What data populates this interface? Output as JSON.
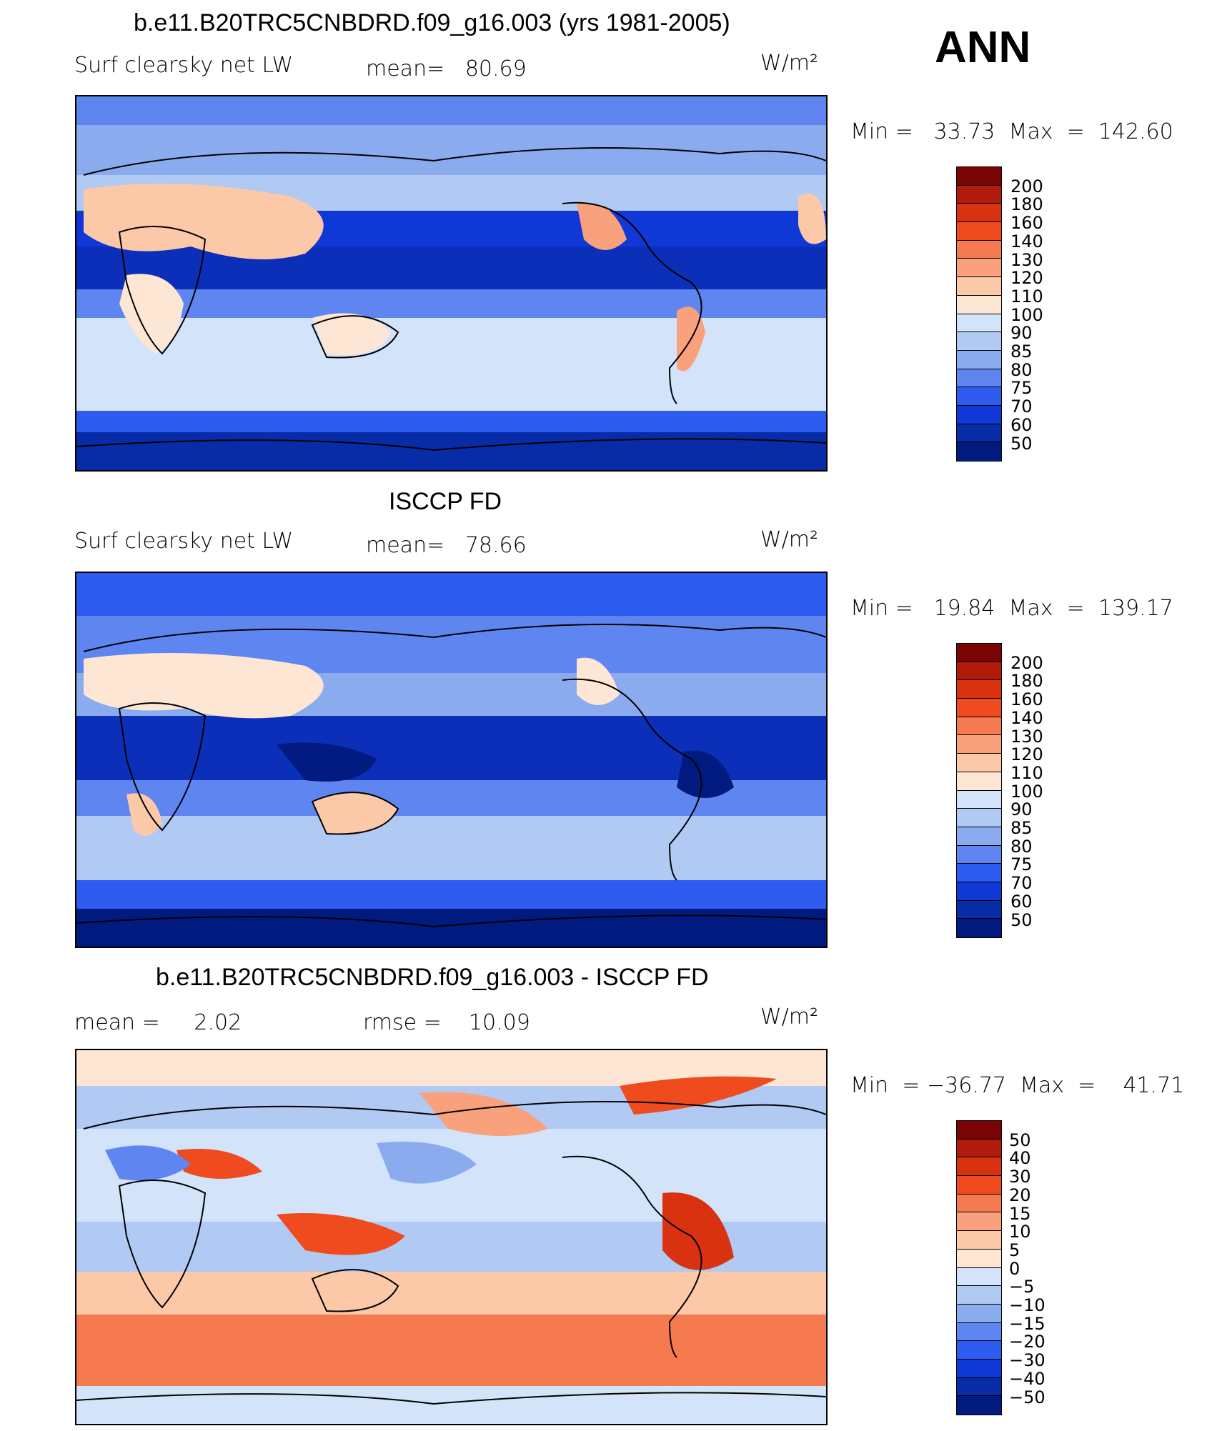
{
  "corner_label": "ANN",
  "panels": [
    {
      "title": "b.e11.B20TRC5CNBDRD.f09_g16.003 (yrs 1981-2005)",
      "variable": "Surf clearsky net LW",
      "stat_text": "mean=   80.69",
      "units": "W/m²",
      "minmax": "Min =   33.73  Max  =  142.60",
      "levels": [
        "200",
        "180",
        "160",
        "140",
        "130",
        "120",
        "110",
        "100",
        "90",
        "85",
        "80",
        "75",
        "70",
        "60",
        "50"
      ]
    },
    {
      "title": "ISCCP FD",
      "variable": "Surf clearsky net LW",
      "stat_text": "mean=   78.66",
      "units": "W/m²",
      "minmax": "Min =   19.84  Max  =  139.17",
      "levels": [
        "200",
        "180",
        "160",
        "140",
        "130",
        "120",
        "110",
        "100",
        "90",
        "85",
        "80",
        "75",
        "70",
        "60",
        "50"
      ]
    },
    {
      "title": "b.e11.B20TRC5CNBDRD.f09_g16.003 - ISCCP FD",
      "variable": "mean =     2.02",
      "stat_text": "rmse =    10.09",
      "units": "W/m²",
      "minmax": "Min  = −36.77  Max  =    41.71",
      "levels": [
        "50",
        "40",
        "30",
        "20",
        "15",
        "10",
        "5",
        "0",
        "−5",
        "−10",
        "−15",
        "−20",
        "−30",
        "−40",
        "−50"
      ]
    }
  ],
  "colorbar_colors": [
    "#7a0403",
    "#b01b0c",
    "#d83211",
    "#f04b1e",
    "#f57a4f",
    "#f8a17c",
    "#fbc8a8",
    "#fde6d4",
    "#d3e3fa",
    "#b0caf4",
    "#8aacee",
    "#5f86f0",
    "#2e5cf0",
    "#1038d6",
    "#082ca8",
    "#001a80"
  ]
}
